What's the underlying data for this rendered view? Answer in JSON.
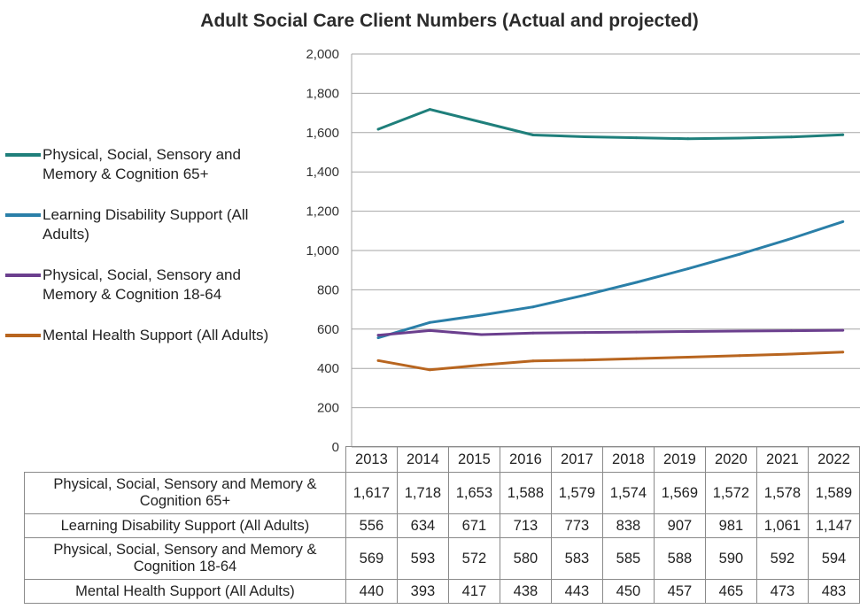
{
  "chart_data": {
    "type": "line",
    "title": "Adult Social Care Client Numbers (Actual and projected)",
    "xlabel": "",
    "ylabel": "",
    "ylim": [
      0,
      2000
    ],
    "yticks": [
      0,
      200,
      400,
      600,
      800,
      1000,
      1200,
      1400,
      1600,
      1800,
      2000
    ],
    "ytick_labels": [
      "0",
      "200",
      "400",
      "600",
      "800",
      "1,000",
      "1,200",
      "1,400",
      "1,600",
      "1,800",
      "2,000"
    ],
    "grid": true,
    "legend_position": "left",
    "categories": [
      "2013",
      "2014",
      "2015",
      "2016",
      "2017",
      "2018",
      "2019",
      "2020",
      "2021",
      "2022"
    ],
    "series": [
      {
        "name": "Physical, Social, Sensory and Memory & Cognition 65+",
        "table_label": "Physical, Social, Sensory and Memory & Cognition 65+",
        "color": "#1f7f7b",
        "values": [
          1617,
          1718,
          1653,
          1588,
          1579,
          1574,
          1569,
          1572,
          1578,
          1589
        ],
        "value_labels": [
          "1,617",
          "1,718",
          "1,653",
          "1,588",
          "1,579",
          "1,574",
          "1,569",
          "1,572",
          "1,578",
          "1,589"
        ]
      },
      {
        "name": "Learning Disability Support (All Adults)",
        "table_label": "Learning Disability Support (All Adults)",
        "color": "#2a7fa8",
        "values": [
          556,
          634,
          671,
          713,
          773,
          838,
          907,
          981,
          1061,
          1147
        ],
        "value_labels": [
          "556",
          "634",
          "671",
          "713",
          "773",
          "838",
          "907",
          "981",
          "1,061",
          "1,147"
        ]
      },
      {
        "name": "Physical, Social, Sensory and Memory & Cognition 18-64",
        "table_label": "Physical, Social, Sensory and Memory & Cognition 18-64",
        "color": "#6b3f8e",
        "values": [
          569,
          593,
          572,
          580,
          583,
          585,
          588,
          590,
          592,
          594
        ],
        "value_labels": [
          "569",
          "593",
          "572",
          "580",
          "583",
          "585",
          "588",
          "590",
          "592",
          "594"
        ]
      },
      {
        "name": "Mental Health Support  (All Adults)",
        "table_label": "Mental Health Support  (All Adults)",
        "color": "#b8651f",
        "values": [
          440,
          393,
          417,
          438,
          443,
          450,
          457,
          465,
          473,
          483
        ],
        "value_labels": [
          "440",
          "393",
          "417",
          "438",
          "443",
          "450",
          "457",
          "465",
          "473",
          "483"
        ]
      }
    ]
  }
}
